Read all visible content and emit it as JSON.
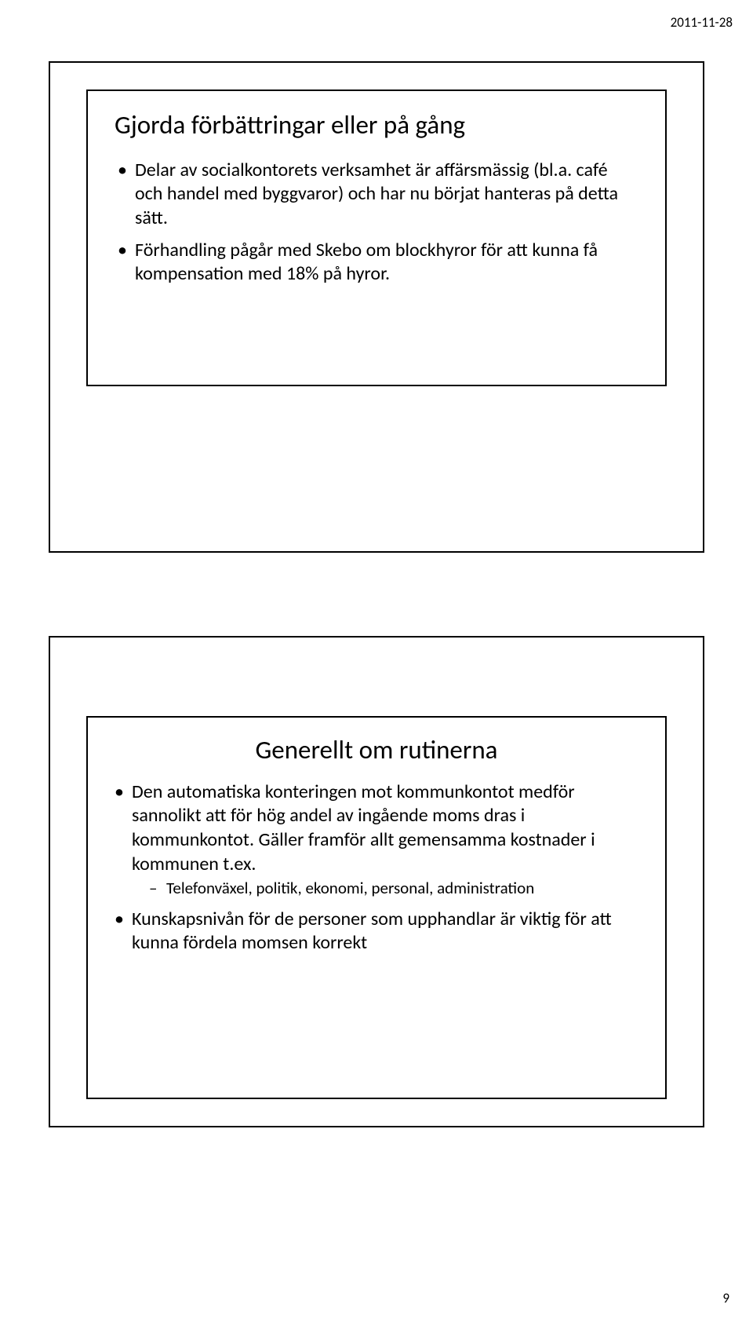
{
  "document": {
    "date": "2011-11-28",
    "page_number": "9"
  },
  "slide1": {
    "title": "Gjorda förbättringar eller på gång",
    "bullets": [
      {
        "text": "Delar av socialkontorets verksamhet är affärsmässig (bl.a. café och handel med byggvaror) och har nu börjat hanteras på detta sätt."
      },
      {
        "text": "Förhandling pågår med Skebo om blockhyror för att kunna få kompensation med 18% på hyror."
      }
    ]
  },
  "slide2": {
    "title": "Generellt om rutinerna",
    "bullets": [
      {
        "text": "Den automatiska konteringen mot kommunkontot medför sannolikt att för hög andel av ingående moms dras i kommunkontot. Gäller framför allt gemensamma kostnader i kommunen t.ex.",
        "sub": [
          {
            "text": "Telefonväxel, politik, ekonomi, personal, administration"
          }
        ]
      },
      {
        "text": "Kunskapsnivån för de personer som upphandlar är viktig för att kunna fördela momsen korrekt"
      }
    ]
  }
}
